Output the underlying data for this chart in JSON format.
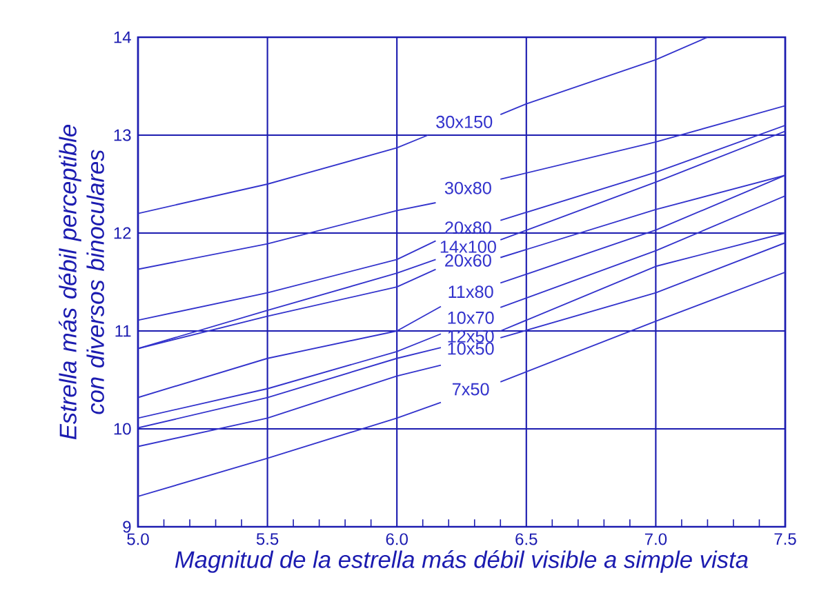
{
  "chart_data": {
    "type": "line",
    "xlabel": "Magnitud de la estrella más débil visible a simple vista",
    "ylabel": "Estrella más débil perceptible con diversos binoculares",
    "xlim": [
      5.0,
      7.5
    ],
    "ylim": [
      9,
      14
    ],
    "xticks": [
      {
        "value": 5.0,
        "label": "5.0"
      },
      {
        "value": 5.5,
        "label": "5.5"
      },
      {
        "value": 6.0,
        "label": "6.0"
      },
      {
        "value": 6.5,
        "label": "6.5"
      },
      {
        "value": 7.0,
        "label": "7.0"
      },
      {
        "value": 7.5,
        "label": "7.5"
      }
    ],
    "yticks": [
      9,
      10,
      11,
      12,
      13,
      14
    ],
    "grid": true,
    "marker": "none",
    "line_style": "solid",
    "series": [
      {
        "name": "30x150",
        "color": "#3333cc",
        "x": [
          5.0,
          5.5,
          6.0,
          6.12,
          6.3,
          6.4,
          6.5,
          7.0,
          7.2
        ],
        "values": [
          12.2,
          12.5,
          12.87,
          13.0,
          null,
          13.21,
          13.32,
          13.77,
          14.0
        ]
      },
      {
        "name": "30x80",
        "color": "#3333cc",
        "x": [
          5.0,
          5.5,
          6.0,
          6.15,
          6.3,
          6.4,
          7.0,
          7.5
        ],
        "values": [
          11.63,
          11.89,
          12.23,
          12.31,
          null,
          12.55,
          12.93,
          13.3
        ]
      },
      {
        "name": "20x80",
        "color": "#3333cc",
        "x": [
          5.0,
          5.5,
          6.0,
          6.15,
          6.3,
          6.4,
          7.0,
          7.5
        ],
        "values": [
          11.11,
          11.39,
          11.73,
          11.92,
          null,
          12.13,
          12.62,
          13.1
        ]
      },
      {
        "name": "14x100",
        "color": "#3333cc",
        "x": [
          5.0,
          5.5,
          6.0,
          6.15,
          6.3,
          6.4,
          7.0,
          7.5
        ],
        "values": [
          10.82,
          11.21,
          11.59,
          11.73,
          null,
          11.93,
          12.52,
          13.04
        ]
      },
      {
        "name": "20x60",
        "color": "#3333cc",
        "x": [
          5.0,
          5.5,
          6.0,
          6.15,
          6.3,
          6.4,
          7.0,
          7.5
        ],
        "values": [
          10.82,
          11.15,
          11.45,
          11.63,
          null,
          11.75,
          12.24,
          12.59
        ]
      },
      {
        "name": "11x80",
        "color": "#3333cc",
        "x": [
          5.0,
          5.5,
          6.0,
          6.17,
          6.3,
          6.4,
          7.0,
          7.5
        ],
        "values": [
          10.32,
          10.72,
          11.0,
          11.25,
          null,
          11.49,
          12.03,
          12.59
        ]
      },
      {
        "name": "10x70",
        "color": "#3333cc",
        "x": [
          5.0,
          5.5,
          6.0,
          6.17,
          6.3,
          6.4,
          7.0,
          7.5
        ],
        "values": [
          10.11,
          10.41,
          10.79,
          10.97,
          null,
          11.24,
          11.82,
          12.38
        ]
      },
      {
        "name": "12x50",
        "color": "#3333cc",
        "x": [
          5.0,
          5.5,
          6.0,
          6.17,
          6.3,
          6.4,
          7.0,
          7.5
        ],
        "values": [
          10.01,
          10.32,
          10.72,
          10.83,
          null,
          11.0,
          11.66,
          12.0
        ]
      },
      {
        "name": "10x50",
        "color": "#3333cc",
        "x": [
          5.0,
          5.5,
          6.0,
          6.17,
          6.3,
          6.4,
          7.0,
          7.5
        ],
        "values": [
          9.82,
          10.11,
          10.54,
          10.65,
          null,
          10.93,
          11.39,
          11.9
        ]
      },
      {
        "name": "7x50",
        "color": "#3333cc",
        "x": [
          5.0,
          5.5,
          6.0,
          6.17,
          6.3,
          6.4,
          7.0,
          7.5
        ],
        "values": [
          9.31,
          9.7,
          10.11,
          10.27,
          null,
          10.48,
          11.1,
          11.6
        ]
      }
    ]
  }
}
